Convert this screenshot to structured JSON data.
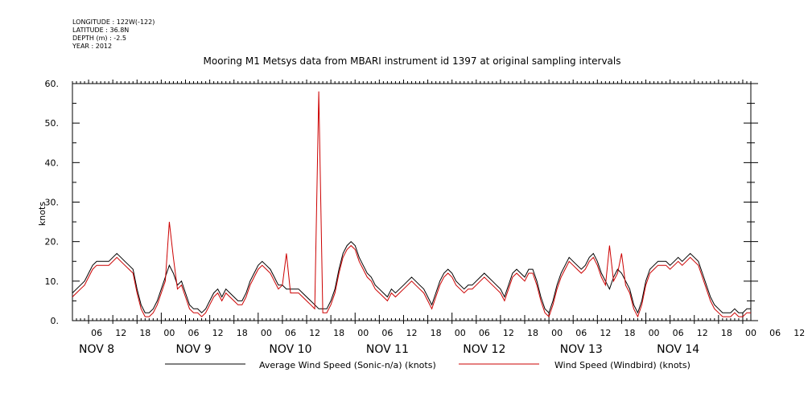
{
  "header": {
    "longitude": "LONGITUDE : 122W(-122)",
    "latitude": "LATITUDE : 36.8N",
    "depth": "DEPTH (m) : -2.5",
    "year": "YEAR : 2012"
  },
  "chart_data": {
    "type": "line",
    "title": "Mooring M1 Metsys data from MBARI instrument id 1397 at original sampling intervals",
    "ylabel": "knots",
    "xlabel": "",
    "ylim": [
      0,
      60
    ],
    "yticks": [
      "0.",
      "10.",
      "20.",
      "30.",
      "40.",
      "50.",
      "60."
    ],
    "xlim_hours": [
      146,
      314
    ],
    "x_units": "hours since 00:00 on NOV 2, 2012",
    "hour_tick_labels": [
      "06",
      "12",
      "18",
      "00",
      "06",
      "12",
      "18",
      "00",
      "06",
      "12",
      "18",
      "00",
      "06",
      "12",
      "18",
      "00",
      "06",
      "12",
      "18",
      "00",
      "06",
      "12",
      "18",
      "00",
      "06",
      "12",
      "18",
      "00",
      "06",
      "12",
      "18",
      "00"
    ],
    "day_labels": [
      "NOV 8",
      "NOV 9",
      "NOV 10",
      "NOV 11",
      "NOV 12",
      "NOV 13",
      "NOV 14"
    ],
    "grid": false,
    "legend_placement": "bottom",
    "series": [
      {
        "name": "Average Wind Speed (Sonic-n/a) (knots)",
        "color": "#000000",
        "x": [
          146,
          147,
          148,
          149,
          150,
          151,
          152,
          153,
          154,
          155,
          156,
          157,
          158,
          159,
          160,
          161,
          162,
          163,
          164,
          165,
          166,
          167,
          168,
          169,
          170,
          171,
          172,
          173,
          174,
          175,
          176,
          177,
          178,
          179,
          180,
          181,
          182,
          183,
          184,
          185,
          186,
          187,
          188,
          189,
          190,
          191,
          192,
          193,
          194,
          195,
          196,
          197,
          198,
          199,
          200,
          201,
          202,
          203,
          204,
          205,
          206,
          207,
          208,
          209,
          210,
          211,
          212,
          213,
          214,
          215,
          216,
          217,
          218,
          219,
          220,
          221,
          222,
          223,
          224,
          225,
          226,
          227,
          228,
          229,
          230,
          231,
          232,
          233,
          234,
          235,
          236,
          237,
          238,
          239,
          240,
          241,
          242,
          243,
          244,
          245,
          246,
          247,
          248,
          249,
          250,
          251,
          252,
          253,
          254,
          255,
          256,
          257,
          258,
          259,
          260,
          261,
          262,
          263,
          264,
          265,
          266,
          267,
          268,
          269,
          270,
          271,
          272,
          273,
          274,
          275,
          276,
          277,
          278,
          279,
          280,
          281,
          282,
          283,
          284,
          285,
          286,
          287,
          288,
          289,
          290,
          291,
          292,
          293,
          294,
          295,
          296,
          297,
          298,
          299,
          300,
          301,
          302,
          303,
          304,
          305,
          306,
          307,
          308,
          309,
          310,
          311,
          312,
          313,
          314
        ],
        "y": [
          7,
          8,
          9,
          10,
          12,
          14,
          15,
          15,
          15,
          15,
          16,
          17,
          16,
          15,
          14,
          13,
          8,
          4,
          2,
          2,
          3,
          5,
          8,
          11,
          14,
          12,
          9,
          10,
          7,
          4,
          3,
          3,
          2,
          3,
          5,
          7,
          8,
          6,
          8,
          7,
          6,
          5,
          5,
          7,
          10,
          12,
          14,
          15,
          14,
          13,
          11,
          9,
          9,
          8,
          8,
          8,
          8,
          7,
          6,
          5,
          4,
          3,
          3,
          3,
          5,
          8,
          13,
          17,
          19,
          20,
          19,
          16,
          14,
          12,
          11,
          9,
          8,
          7,
          6,
          8,
          7,
          8,
          9,
          10,
          11,
          10,
          9,
          8,
          6,
          4,
          7,
          10,
          12,
          13,
          12,
          10,
          9,
          8,
          9,
          9,
          10,
          11,
          12,
          11,
          10,
          9,
          8,
          6,
          9,
          12,
          13,
          12,
          11,
          13,
          13,
          10,
          6,
          3,
          2,
          5,
          9,
          12,
          14,
          16,
          15,
          14,
          13,
          14,
          16,
          17,
          15,
          12,
          10,
          8,
          11,
          13,
          12,
          10,
          8,
          4,
          2,
          5,
          10,
          13,
          14,
          15,
          15,
          15,
          14,
          15,
          16,
          15,
          16,
          17,
          16,
          15,
          12,
          9,
          6,
          4,
          3,
          2,
          2,
          2,
          3,
          2,
          2,
          3,
          3
        ]
      },
      {
        "name": "Wind Speed (Windbird) (knots)",
        "color": "#cc0000",
        "x": [
          146,
          147,
          148,
          149,
          150,
          151,
          152,
          153,
          154,
          155,
          156,
          157,
          158,
          159,
          160,
          161,
          162,
          163,
          164,
          165,
          166,
          167,
          168,
          169,
          170,
          171,
          172,
          173,
          174,
          175,
          176,
          177,
          178,
          179,
          180,
          181,
          182,
          183,
          184,
          185,
          186,
          187,
          188,
          189,
          190,
          191,
          192,
          193,
          194,
          195,
          196,
          197,
          198,
          199,
          200,
          201,
          202,
          203,
          204,
          205,
          206,
          207,
          208,
          209,
          210,
          211,
          212,
          213,
          214,
          215,
          216,
          217,
          218,
          219,
          220,
          221,
          222,
          223,
          224,
          225,
          226,
          227,
          228,
          229,
          230,
          231,
          232,
          233,
          234,
          235,
          236,
          237,
          238,
          239,
          240,
          241,
          242,
          243,
          244,
          245,
          246,
          247,
          248,
          249,
          250,
          251,
          252,
          253,
          254,
          255,
          256,
          257,
          258,
          259,
          260,
          261,
          262,
          263,
          264,
          265,
          266,
          267,
          268,
          269,
          270,
          271,
          272,
          273,
          274,
          275,
          276,
          277,
          278,
          279,
          280,
          281,
          282,
          283,
          284,
          285,
          286,
          287,
          288,
          289,
          290,
          291,
          292,
          293,
          294,
          295,
          296,
          297,
          298,
          299,
          300,
          301,
          302,
          303,
          304,
          305,
          306,
          307,
          308,
          309,
          310,
          311,
          312,
          313,
          314
        ],
        "y": [
          6,
          7,
          8,
          9,
          11,
          13,
          14,
          14,
          14,
          14,
          15,
          16,
          15,
          14,
          13,
          12,
          7,
          3,
          1,
          1,
          2,
          4,
          7,
          10,
          25,
          16,
          8,
          9,
          6,
          3,
          2,
          2,
          1,
          2,
          4,
          6,
          7,
          5,
          7,
          6,
          5,
          4,
          4,
          6,
          9,
          11,
          13,
          14,
          13,
          12,
          10,
          8,
          9,
          17,
          7,
          7,
          7,
          6,
          5,
          4,
          3,
          58,
          2,
          2,
          4,
          7,
          12,
          16,
          18,
          19,
          18,
          15,
          13,
          11,
          10,
          8,
          7,
          6,
          5,
          7,
          6,
          7,
          8,
          9,
          10,
          9,
          8,
          7,
          5,
          3,
          6,
          9,
          11,
          12,
          11,
          9,
          8,
          7,
          8,
          8,
          9,
          10,
          11,
          10,
          9,
          8,
          7,
          5,
          8,
          11,
          12,
          11,
          10,
          12,
          12,
          9,
          5,
          2,
          1,
          4,
          8,
          11,
          13,
          15,
          14,
          13,
          12,
          13,
          15,
          16,
          14,
          11,
          9,
          19,
          10,
          12,
          17,
          9,
          7,
          3,
          1,
          4,
          9,
          12,
          13,
          14,
          14,
          14,
          13,
          14,
          15,
          14,
          15,
          16,
          15,
          14,
          11,
          8,
          5,
          3,
          2,
          1,
          1,
          1,
          2,
          1,
          1,
          2,
          2
        ]
      }
    ]
  }
}
